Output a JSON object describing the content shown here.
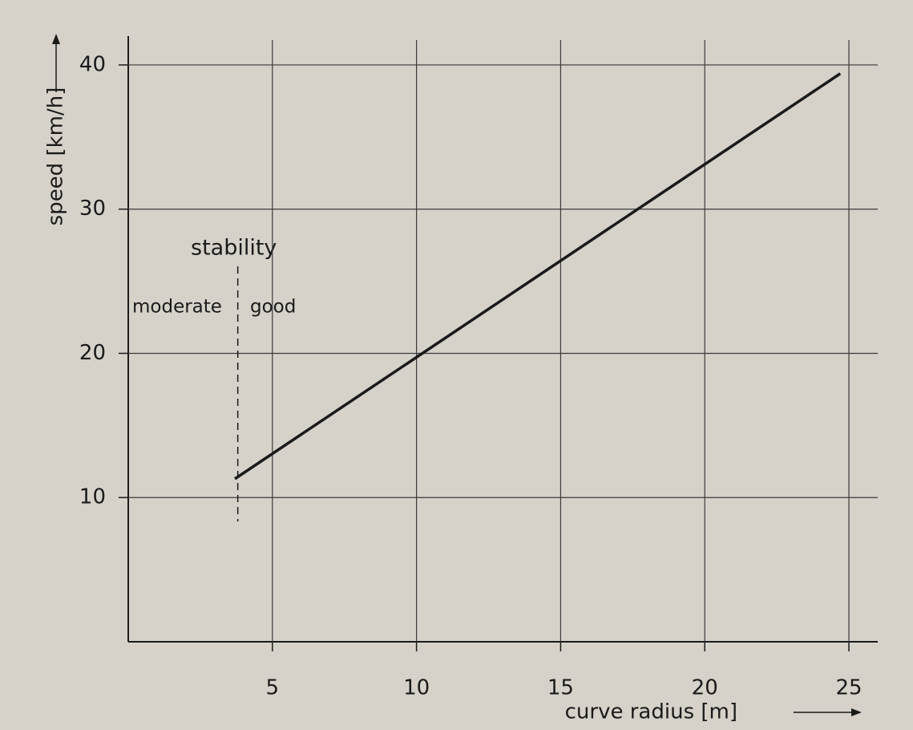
{
  "chart_data": {
    "type": "line",
    "x_label": "curve radius [m]",
    "y_label": "speed [km/h]",
    "annotations": {
      "title": "stability",
      "left": "moderate",
      "right": "good",
      "divider_x": 3.8
    },
    "x": [
      3.7,
      24.7
    ],
    "series": [
      {
        "color": "#1a1a1a",
        "values": [
          11.3,
          39.4
        ]
      }
    ],
    "xlim": [
      0,
      26
    ],
    "ylim": [
      0,
      42
    ],
    "xticks": [
      5,
      10,
      15,
      20,
      25
    ],
    "yticks": [
      10,
      20,
      30,
      40
    ],
    "grid": true
  }
}
